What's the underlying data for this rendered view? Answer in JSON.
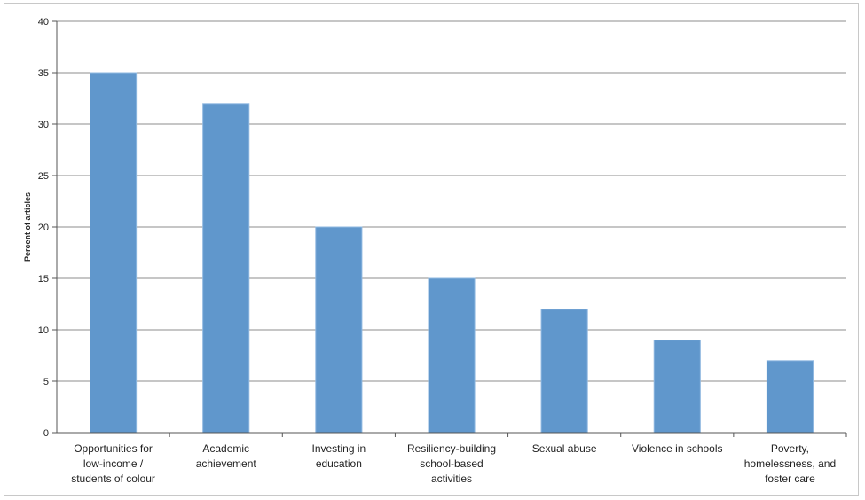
{
  "chart_data": {
    "type": "bar",
    "title": "",
    "xlabel": "",
    "ylabel": "Percent of articles",
    "ylim": [
      0,
      40
    ],
    "yticks": [
      0,
      5,
      10,
      15,
      20,
      25,
      30,
      35,
      40
    ],
    "grid": true,
    "legend": "none",
    "bar_color": "#6097cc",
    "bar_edge_color": "#8fb8e0",
    "grid_color": "#8c8c8c",
    "categories": [
      [
        "Opportunities for",
        "low-income /",
        "students of colour"
      ],
      [
        "Academic",
        "achievement"
      ],
      [
        "Investing in",
        "education"
      ],
      [
        "Resiliency-building",
        "school-based",
        "activities"
      ],
      [
        "Sexual abuse"
      ],
      [
        "Violence in schools"
      ],
      [
        "Poverty,",
        "homelessness, and",
        "foster care"
      ]
    ],
    "values": [
      35,
      32,
      20,
      15,
      12,
      9,
      7
    ]
  }
}
